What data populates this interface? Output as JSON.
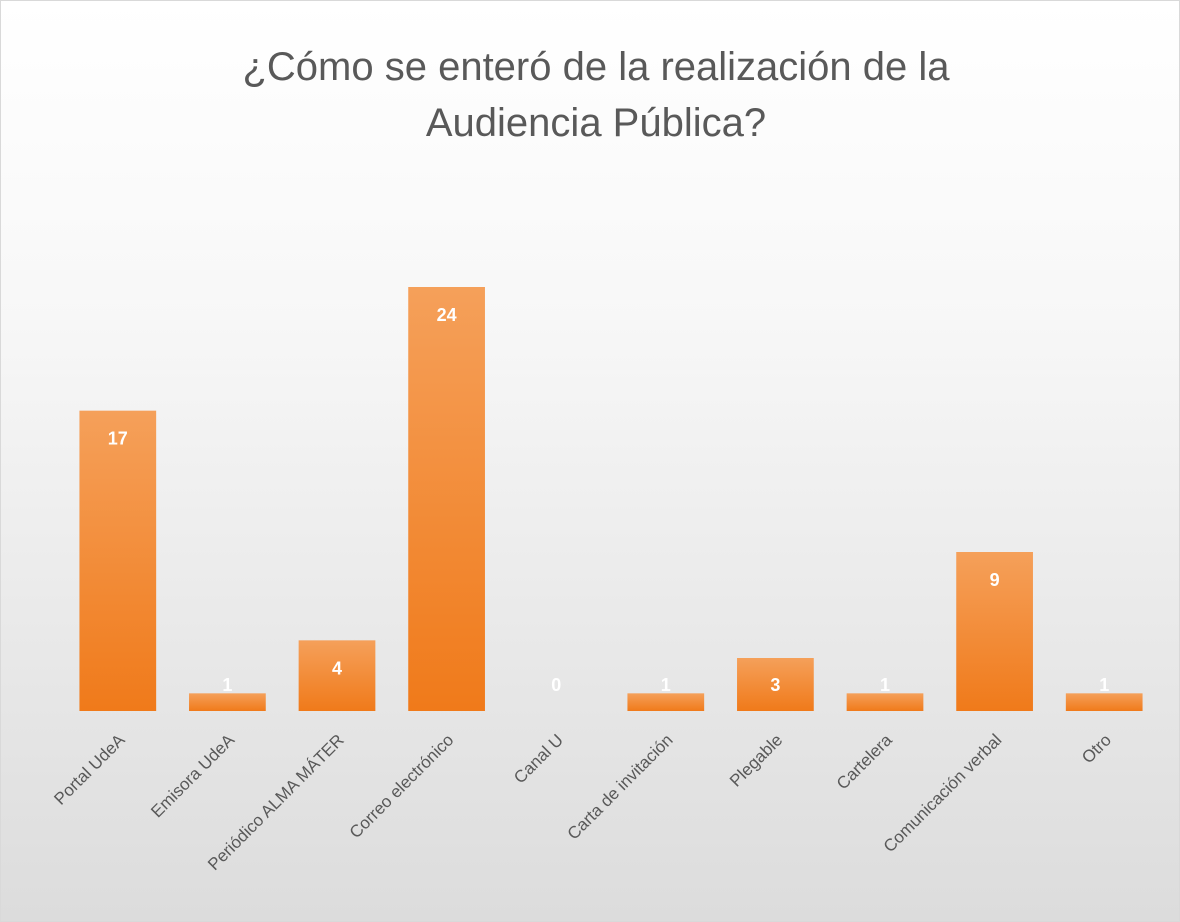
{
  "chart_data": {
    "type": "bar",
    "title": "¿Cómo se enteró de la realización de la Audiencia Pública?",
    "categories": [
      "Portal UdeA",
      "Emisora UdeA",
      "Periódico ALMA MÁTER",
      "Correo electrónico",
      "Canal U",
      "Carta de invitación",
      "Plegable",
      "Cartelera",
      "Comunicación verbal",
      "Otro"
    ],
    "values": [
      17,
      1,
      4,
      24,
      0,
      1,
      3,
      1,
      9,
      1
    ],
    "color": "#f07a1a"
  }
}
